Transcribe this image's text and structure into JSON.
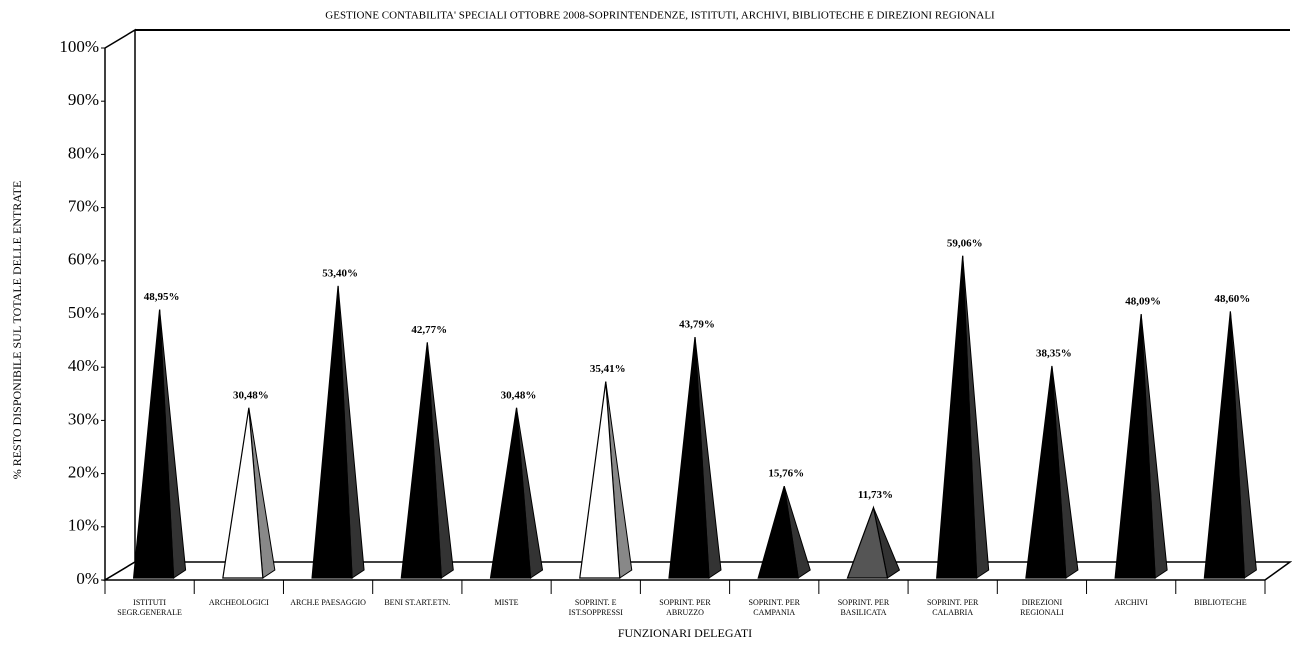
{
  "chart_data": {
    "type": "pyramid",
    "title": "GESTIONE CONTABILITA' SPECIALI OTTOBRE 2008-SOPRINTENDENZE, ISTITUTI, ARCHIVI, BIBLIOTECHE E DIREZIONI REGIONALI",
    "y_label": "% RESTO DISPONIBILE SUL TOTALE DELLE ENTRATE",
    "x_label": "FUNZIONARI DELEGATI",
    "categories": [
      "ISTITUTI SEGR.GENERALE",
      "ARCHEOLOGICI",
      "ARCH.E PAESAGGIO",
      "BENI ST.ART.ETN.",
      "MISTE",
      "SOPRINT. E IST.SOPPRESSI",
      "SOPRINT. PER ABRUZZO",
      "SOPRINT. PER CAMPANIA",
      "SOPRINT. PER BASILICATA",
      "SOPRINT. PER CALABRIA",
      "DIREZIONI REGIONALI",
      "ARCHIVI",
      "BIBLIOTECHE"
    ],
    "values": [
      48.95,
      30.48,
      53.4,
      42.77,
      30.48,
      35.41,
      43.79,
      15.76,
      11.73,
      59.06,
      38.35,
      48.09,
      48.6
    ],
    "value_labels": [
      "48,95%",
      "30,48%",
      "53,40%",
      "42,77%",
      "30,48%",
      "35,41%",
      "43,79%",
      "15,76%",
      "11,73%",
      "59,06%",
      "38,35%",
      "48,09%",
      "48,60%"
    ],
    "colors": [
      "#000000",
      "#ffffff",
      "#000000",
      "#000000",
      "#000000",
      "#ffffff",
      "#000000",
      "#000000",
      "#555555",
      "#000000",
      "#000000",
      "#000000",
      "#000000"
    ],
    "ylim": [
      0,
      100
    ],
    "yticks": [
      {
        "value": 0,
        "label": "0%"
      },
      {
        "value": 10,
        "label": "10%"
      },
      {
        "value": 20,
        "label": "20%"
      },
      {
        "value": 30,
        "label": "30%"
      },
      {
        "value": 40,
        "label": "40%"
      },
      {
        "value": 50,
        "label": "50%"
      },
      {
        "value": 60,
        "label": "60%"
      },
      {
        "value": 70,
        "label": "70%"
      },
      {
        "value": 80,
        "label": "80%"
      },
      {
        "value": 90,
        "label": "90%"
      },
      {
        "value": 100,
        "label": "100%"
      }
    ]
  }
}
